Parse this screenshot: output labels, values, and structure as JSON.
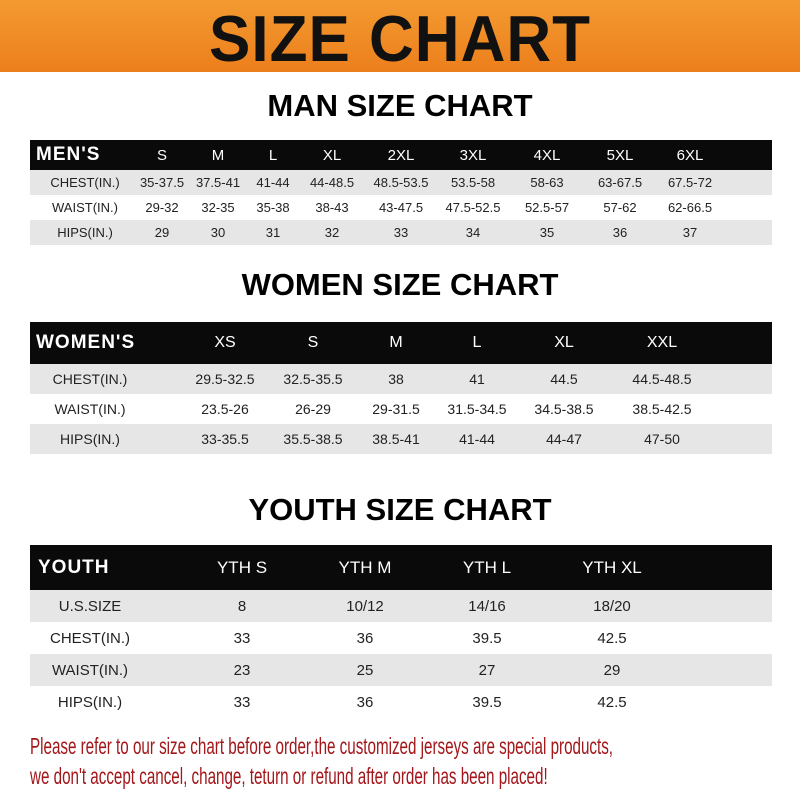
{
  "title": "SIZE CHART",
  "colors": {
    "banner": "#ee8a24",
    "header_row": "#0a0a0a",
    "stripe": "#e6e6e6",
    "notice": "#a3161a"
  },
  "men": {
    "title": "MAN SIZE CHART",
    "header": [
      "MEN'S",
      "S",
      "M",
      "L",
      "XL",
      "2XL",
      "3XL",
      "4XL",
      "5XL",
      "6XL"
    ],
    "rows": [
      [
        "CHEST(IN.)",
        "35-37.5",
        "37.5-41",
        "41-44",
        "44-48.5",
        "48.5-53.5",
        "53.5-58",
        "58-63",
        "63-67.5",
        "67.5-72"
      ],
      [
        "WAIST(IN.)",
        "29-32",
        "32-35",
        "35-38",
        "38-43",
        "43-47.5",
        "47.5-52.5",
        "52.5-57",
        "57-62",
        "62-66.5"
      ],
      [
        "HIPS(IN.)",
        "29",
        "30",
        "31",
        "32",
        "33",
        "34",
        "35",
        "36",
        "37"
      ]
    ]
  },
  "women": {
    "title": "WOMEN SIZE CHART",
    "header": [
      "WOMEN'S",
      "XS",
      "S",
      "M",
      "L",
      "XL",
      "XXL"
    ],
    "rows": [
      [
        "CHEST(IN.)",
        "29.5-32.5",
        "32.5-35.5",
        "38",
        "41",
        "44.5",
        "44.5-48.5"
      ],
      [
        "WAIST(IN.)",
        "23.5-26",
        "26-29",
        "29-31.5",
        "31.5-34.5",
        "34.5-38.5",
        "38.5-42.5"
      ],
      [
        "HIPS(IN.)",
        "33-35.5",
        "35.5-38.5",
        "38.5-41",
        "41-44",
        "44-47",
        "47-50"
      ]
    ]
  },
  "youth": {
    "title": "YOUTH SIZE CHART",
    "header": [
      "YOUTH",
      "YTH S",
      "YTH M",
      "YTH L",
      "YTH XL"
    ],
    "rows": [
      [
        "U.S.SIZE",
        "8",
        "10/12",
        "14/16",
        "18/20"
      ],
      [
        "CHEST(IN.)",
        "33",
        "36",
        "39.5",
        "42.5"
      ],
      [
        "WAIST(IN.)",
        "23",
        "25",
        "27",
        "29"
      ],
      [
        "HIPS(IN.)",
        "33",
        "36",
        "39.5",
        "42.5"
      ]
    ]
  },
  "notice": {
    "line1": "Please refer to our size chart before order,the customized jerseys are special products,",
    "line2": "we don't accept cancel, change, teturn or refund after order has been placed!"
  }
}
